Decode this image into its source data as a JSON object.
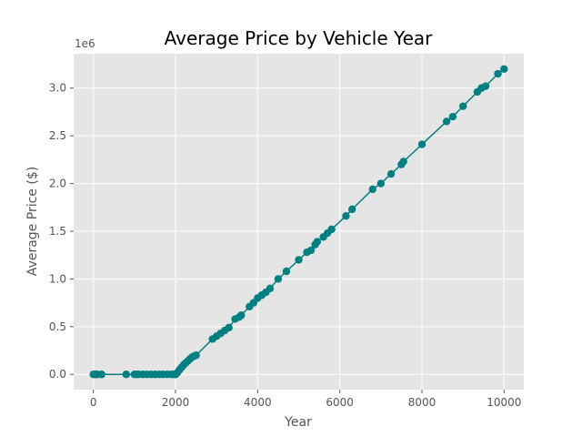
{
  "chart_data": {
    "type": "line",
    "title": "Average Price by Vehicle Year",
    "xlabel": "Year",
    "ylabel": "Average Price ($)",
    "y_offset_label": "1e6",
    "xlim": [
      -480,
      10480
    ],
    "ylim": [
      -160000,
      3360000
    ],
    "x_ticks": [
      0,
      2000,
      4000,
      6000,
      8000,
      10000
    ],
    "x_tick_labels": [
      "0",
      "2000",
      "4000",
      "6000",
      "8000",
      "10000"
    ],
    "y_ticks": [
      0,
      500000,
      1000000,
      1500000,
      2000000,
      2500000,
      3000000
    ],
    "y_tick_labels": [
      "0.0",
      "0.5",
      "1.0",
      "1.5",
      "2.0",
      "2.5",
      "3.0"
    ],
    "grid": true,
    "series_color": "#008080",
    "plot_background": "#e5e5e5",
    "series": [
      {
        "marker": "circle",
        "x": [
          0,
          30,
          60,
          100,
          200,
          800,
          1000,
          1050,
          1100,
          1200,
          1300,
          1400,
          1500,
          1600,
          1700,
          1800,
          1900,
          1950,
          1990,
          2000,
          2050,
          2100,
          2150,
          2200,
          2250,
          2300,
          2350,
          2400,
          2450,
          2500,
          2900,
          3000,
          3100,
          3200,
          3300,
          3450,
          3550,
          3600,
          3800,
          3900,
          4000,
          4100,
          4200,
          4300,
          4500,
          4700,
          5000,
          5200,
          5300,
          5400,
          5450,
          5600,
          5700,
          5800,
          6150,
          6300,
          6800,
          7000,
          7250,
          7500,
          7550,
          8000,
          8600,
          8750,
          9000,
          9350,
          9450,
          9550,
          9850,
          10000
        ],
        "y": [
          0,
          0,
          0,
          0,
          0,
          0,
          0,
          0,
          0,
          0,
          0,
          0,
          0,
          0,
          0,
          0,
          0,
          0,
          0,
          0,
          20000,
          50000,
          75000,
          100000,
          120000,
          140000,
          160000,
          180000,
          190000,
          200000,
          370000,
          400000,
          430000,
          460000,
          490000,
          580000,
          600000,
          620000,
          710000,
          750000,
          800000,
          830000,
          860000,
          900000,
          1000000,
          1080000,
          1200000,
          1280000,
          1300000,
          1360000,
          1390000,
          1440000,
          1480000,
          1520000,
          1660000,
          1730000,
          1940000,
          2000000,
          2100000,
          2200000,
          2230000,
          2410000,
          2650000,
          2700000,
          2810000,
          2960000,
          3000000,
          3020000,
          3150000,
          3200000
        ]
      }
    ]
  }
}
